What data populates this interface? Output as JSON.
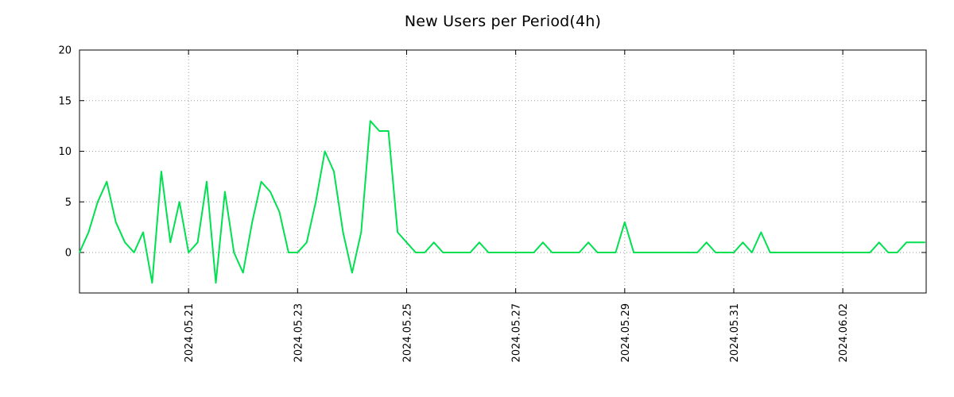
{
  "chart_data": {
    "type": "line",
    "title": "New Users per Period(4h)",
    "period_hours": 4,
    "series_color": "#00e050",
    "grid": "dotted",
    "legend": "none",
    "ylim": [
      -4,
      20
    ],
    "y_ticks": [
      0,
      5,
      10,
      15,
      20
    ],
    "x_tick_labels": [
      "2024.05.21",
      "2024.05.23",
      "2024.05.25",
      "2024.05.27",
      "2024.05.29",
      "2024.05.31",
      "2024.06.02"
    ],
    "x_tick_indices": [
      12,
      24,
      36,
      48,
      60,
      72,
      84
    ],
    "values": [
      0,
      2,
      5,
      7,
      3,
      1,
      0,
      2,
      -3,
      8,
      1,
      5,
      0,
      1,
      7,
      -3,
      6,
      0,
      -2,
      3,
      7,
      6,
      4,
      0,
      0,
      1,
      5,
      10,
      8,
      2,
      -2,
      2,
      13,
      12,
      12,
      2,
      1,
      0,
      0,
      1,
      0,
      0,
      0,
      0,
      1,
      0,
      0,
      0,
      0,
      0,
      0,
      1,
      0,
      0,
      0,
      0,
      1,
      0,
      0,
      0,
      3,
      0,
      0,
      0,
      0,
      0,
      0,
      0,
      0,
      1,
      0,
      0,
      0,
      1,
      0,
      2,
      0,
      0,
      0,
      0,
      0,
      0,
      0,
      0,
      0,
      0,
      0,
      0,
      1,
      0,
      0,
      1,
      1,
      1
    ]
  }
}
